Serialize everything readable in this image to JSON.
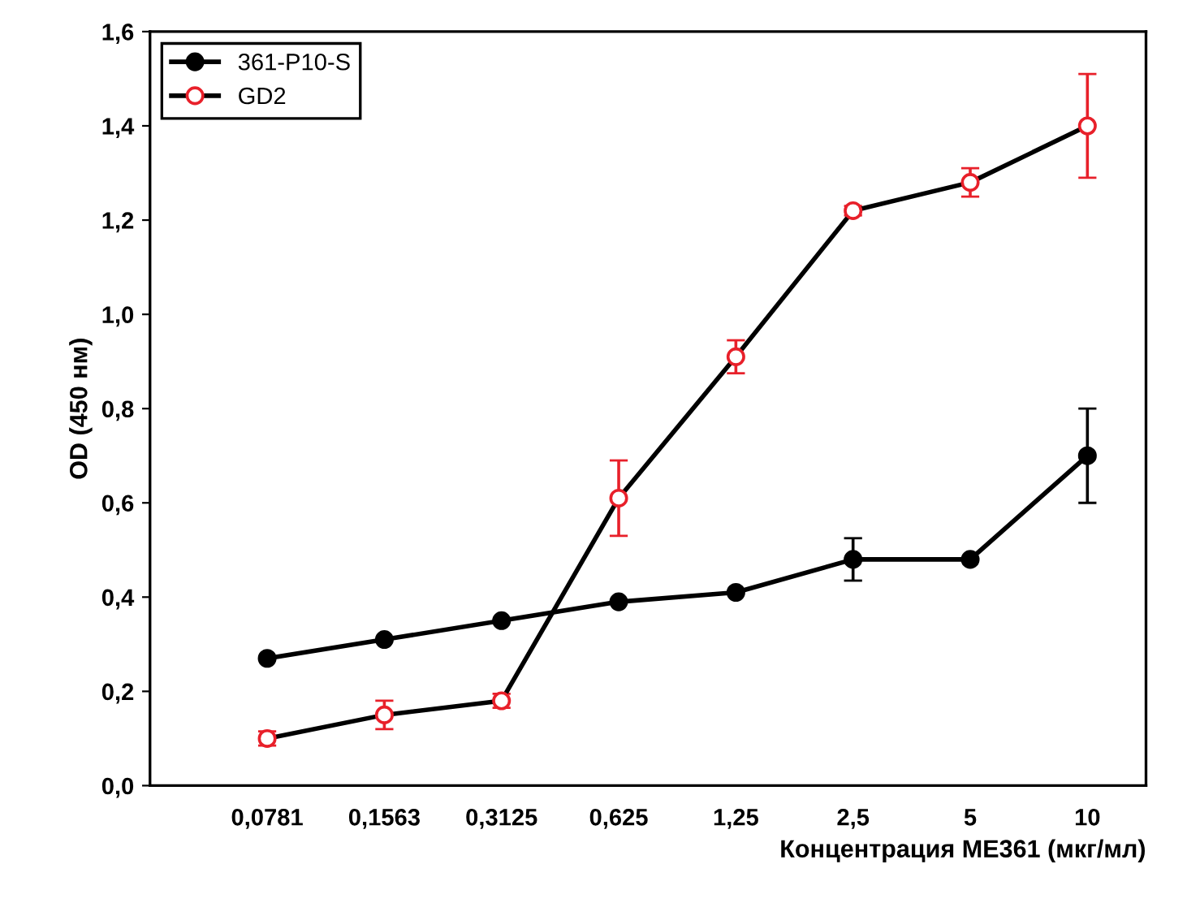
{
  "chart_data": {
    "type": "line",
    "xlabel": "Концентрация ME361 (мкг/мл)",
    "ylabel": "OD (450 нм)",
    "categories": [
      "0,0781",
      "0,1563",
      "0,3125",
      "0,625",
      "1,25",
      "2,5",
      "5",
      "10"
    ],
    "ylim": [
      0,
      1.6
    ],
    "yticks": [
      {
        "value": 0,
        "label": "0,0"
      },
      {
        "value": 0.2,
        "label": "0,2"
      },
      {
        "value": 0.4,
        "label": "0,4"
      },
      {
        "value": 0.6,
        "label": "0,6"
      },
      {
        "value": 0.8,
        "label": "0,8"
      },
      {
        "value": 1.0,
        "label": "1,0"
      },
      {
        "value": 1.2,
        "label": "1,2"
      },
      {
        "value": 1.4,
        "label": "1,4"
      },
      {
        "value": 1.6,
        "label": "1,6"
      }
    ],
    "grid": false,
    "legend": "top left",
    "marker": "circle",
    "line_style": "solid",
    "series": [
      {
        "name": "361-P10-S",
        "color": "#000000",
        "values": [
          0.27,
          0.31,
          0.35,
          0.39,
          0.41,
          0.48,
          0.48,
          0.7
        ],
        "errors": [
          null,
          null,
          null,
          null,
          null,
          0.045,
          null,
          0.1
        ]
      },
      {
        "name": "GD2",
        "color": "#e8202a",
        "values": [
          0.1,
          0.15,
          0.18,
          0.61,
          0.91,
          1.22,
          1.28,
          1.4
        ],
        "errors": [
          0.015,
          0.03,
          0.015,
          0.08,
          0.035,
          0.01,
          0.03,
          0.11
        ]
      }
    ]
  }
}
